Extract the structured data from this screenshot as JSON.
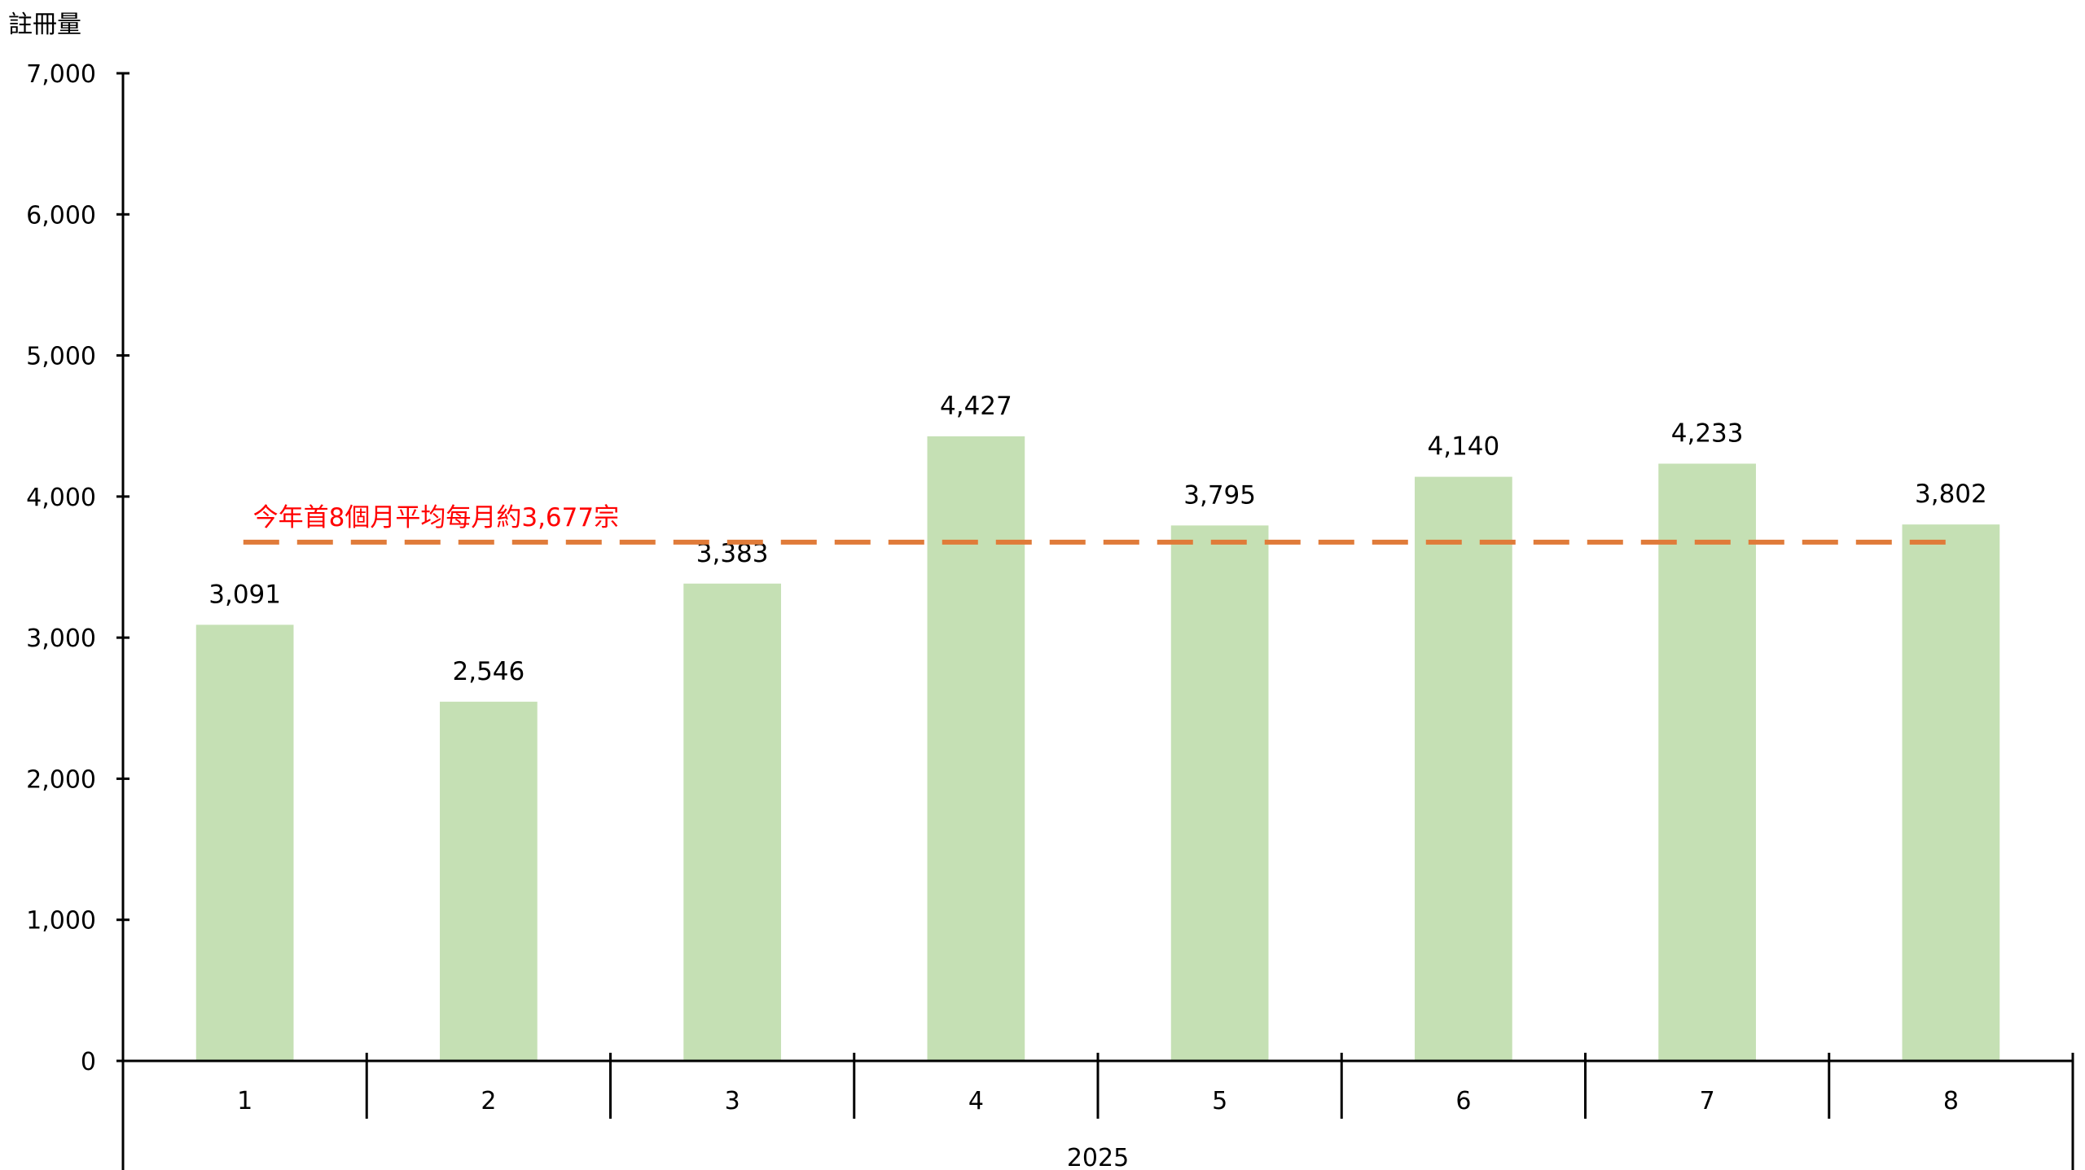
{
  "chart_data": {
    "type": "bar",
    "ylabel": "註冊量",
    "xlabel": "",
    "group_label": "2025",
    "categories": [
      "1",
      "2",
      "3",
      "4",
      "5",
      "6",
      "7",
      "8"
    ],
    "values": [
      3091,
      2546,
      3383,
      4427,
      3795,
      4140,
      4233,
      3802
    ],
    "value_labels": [
      "3,091",
      "2,546",
      "3,383",
      "4,427",
      "3,795",
      "4,140",
      "4,233",
      "3,802"
    ],
    "ylim": [
      0,
      7000
    ],
    "yticks": [
      0,
      1000,
      2000,
      3000,
      4000,
      5000,
      6000,
      7000
    ],
    "ytick_labels": [
      "0",
      "1,000",
      "2,000",
      "3,000",
      "4,000",
      "5,000",
      "6,000",
      "7,000"
    ],
    "grid": false,
    "legend": "none",
    "bar_color": "#c5e0b4",
    "reference_line": {
      "value": 3677,
      "label": "今年首8個月平均每月約3,677宗",
      "line_color": "#e07b39",
      "label_color": "#ff0000",
      "style": "dashed"
    }
  }
}
